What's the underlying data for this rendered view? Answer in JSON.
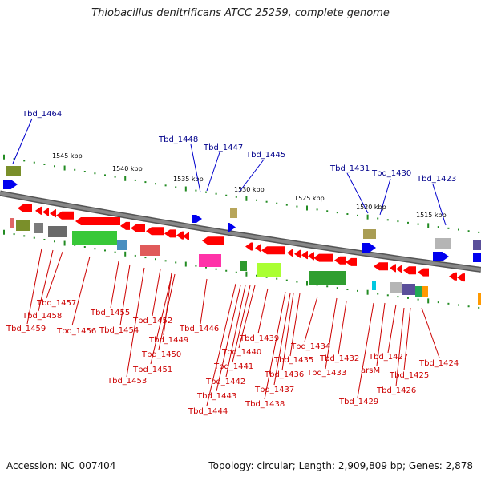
{
  "title": "Thiobacillus denitrificans ATCC 25259, complete genome",
  "accession": "Accession: NC_007404",
  "summary": "Topology: circular; Length: 2,909,809 bp; Genes: 2,878",
  "colors": {
    "backbone": "#888888",
    "gene_forward": "#ff0000",
    "gene_reverse": "#ff0000",
    "label_top": "#00008b",
    "label_bottom": "#cc0000",
    "ticks": "#228b22",
    "ruler_text": "#000000"
  },
  "ruler_labels": [
    "1545 kbp",
    "1540 kbp",
    "1535 kbp",
    "1530 kbp",
    "1525 kbp",
    "1520 kbp",
    "1515 kbp"
  ],
  "top_labels": [
    "Tbd_1464",
    "Tbd_1448",
    "Tbd_1447",
    "Tbd_1445",
    "Tbd_1431",
    "Tbd_1430",
    "Tbd_1423"
  ],
  "bottom_labels": [
    "Tbd_1457",
    "Tbd_1458",
    "Tbd_1459",
    "Tbd_1456",
    "Tbd_1455",
    "Tbd_1454",
    "Tbd_1452",
    "Tbd_1449",
    "Tbd_1450",
    "Tbd_1451",
    "Tbd_1453",
    "Tbd_1446",
    "Tbd_1439",
    "Tbd_1440",
    "Tbd_1441",
    "Tbd_1442",
    "Tbd_1443",
    "Tbd_1444",
    "Tbd_1434",
    "Tbd_1435",
    "Tbd_1436",
    "Tbd_1437",
    "Tbd_1438",
    "Tbd_1432",
    "Tbd_1433",
    "Tbd_1427",
    "arsM",
    "Tbd_1429",
    "Tbd_1425",
    "Tbd_1426",
    "Tbd_1424"
  ]
}
